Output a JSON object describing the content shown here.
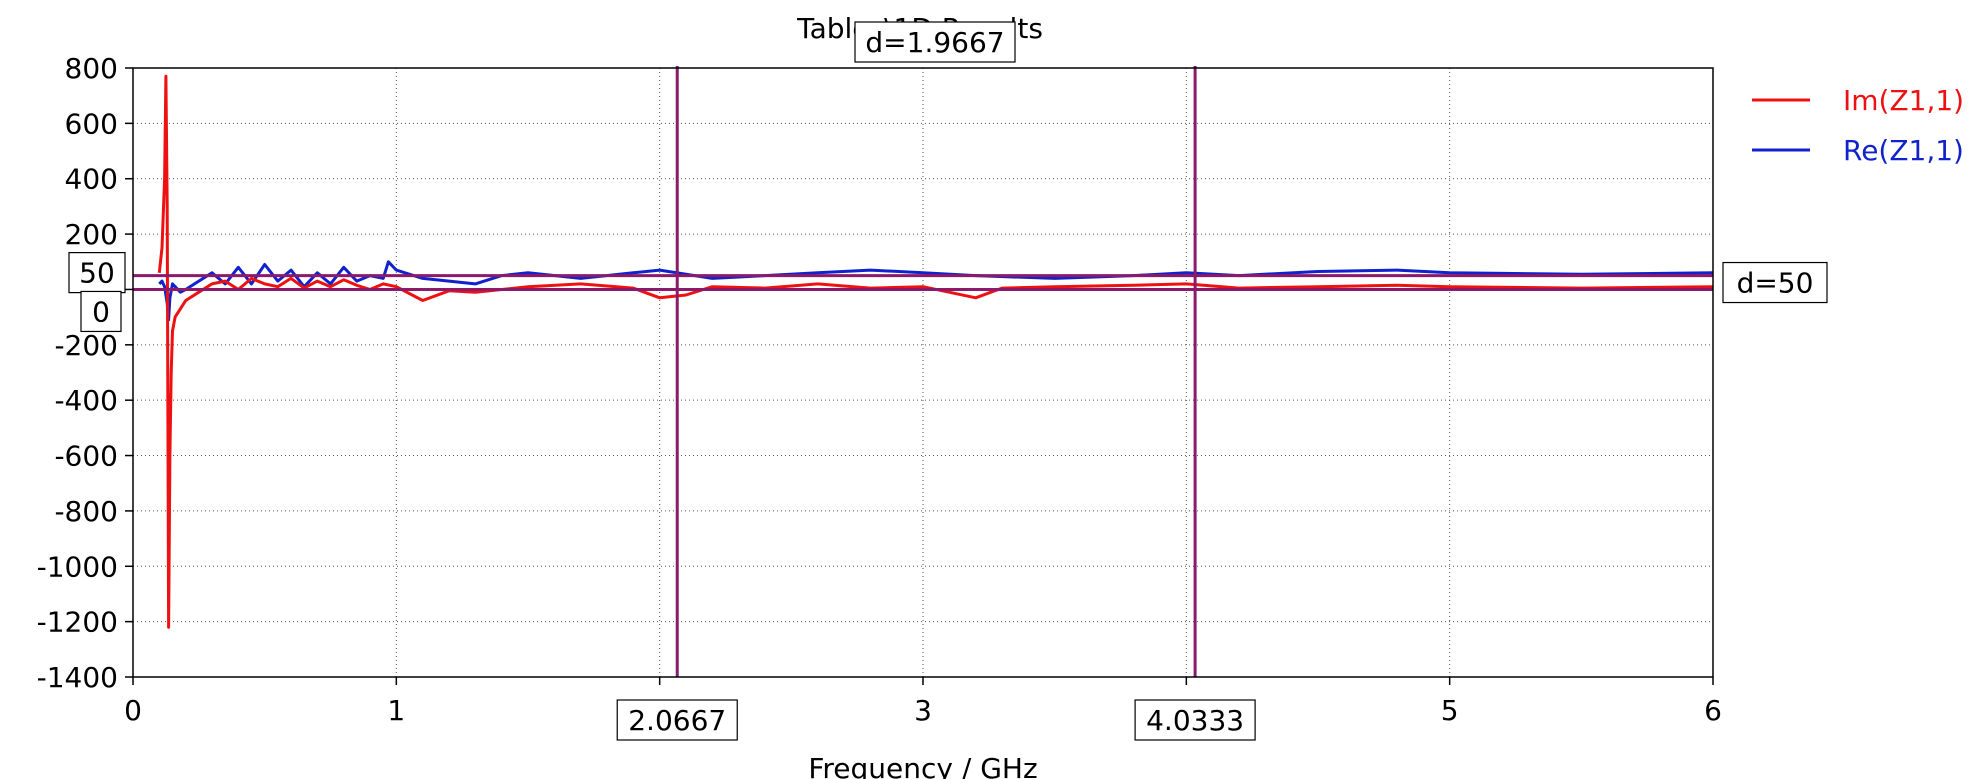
{
  "chart_data": {
    "type": "line",
    "title": "Tables\\1D Results",
    "xlabel": "Frequency / GHz",
    "ylabel": "",
    "xlim": [
      0,
      6
    ],
    "ylim": [
      -1400,
      800
    ],
    "xticks": [
      "0",
      "1",
      "3",
      "5",
      "6"
    ],
    "yticks": [
      "800",
      "600",
      "400",
      "200",
      "-200",
      "-400",
      "-600",
      "-800",
      "-1000",
      "-1200",
      "-1400"
    ],
    "grid": true,
    "legend_position": "right",
    "series": [
      {
        "name": "Im(Z1,1)",
        "color": "#ee1111",
        "x": [
          0.1,
          0.11,
          0.12,
          0.125,
          0.13,
          0.135,
          0.14,
          0.145,
          0.15,
          0.16,
          0.18,
          0.2,
          0.25,
          0.3,
          0.35,
          0.4,
          0.45,
          0.5,
          0.55,
          0.6,
          0.65,
          0.7,
          0.75,
          0.8,
          0.85,
          0.9,
          0.95,
          1.0,
          1.1,
          1.2,
          1.3,
          1.4,
          1.5,
          1.7,
          1.9,
          2.0,
          2.1,
          2.2,
          2.4,
          2.6,
          2.8,
          3.0,
          3.2,
          3.3,
          3.5,
          3.8,
          4.0,
          4.2,
          4.5,
          4.8,
          5.0,
          5.5,
          6.0
        ],
        "y": [
          60,
          150,
          400,
          770,
          300,
          -1220,
          -600,
          -300,
          -150,
          -100,
          -70,
          -40,
          -10,
          20,
          30,
          0,
          40,
          20,
          10,
          40,
          5,
          30,
          10,
          35,
          15,
          0,
          20,
          10,
          -40,
          -5,
          -10,
          0,
          10,
          20,
          5,
          -30,
          -20,
          10,
          5,
          20,
          5,
          10,
          -30,
          5,
          10,
          15,
          20,
          5,
          10,
          15,
          10,
          5,
          10
        ]
      },
      {
        "name": "Re(Z1,1)",
        "color": "#1122cc",
        "x": [
          0.1,
          0.11,
          0.12,
          0.13,
          0.135,
          0.14,
          0.15,
          0.18,
          0.2,
          0.25,
          0.3,
          0.35,
          0.4,
          0.45,
          0.5,
          0.55,
          0.6,
          0.65,
          0.7,
          0.75,
          0.8,
          0.85,
          0.9,
          0.95,
          0.97,
          1.0,
          1.1,
          1.2,
          1.3,
          1.4,
          1.5,
          1.7,
          1.9,
          2.0,
          2.2,
          2.4,
          2.6,
          2.8,
          3.0,
          3.2,
          3.5,
          3.8,
          4.0,
          4.2,
          4.5,
          4.8,
          5.0,
          5.5,
          6.0
        ],
        "y": [
          20,
          30,
          10,
          -50,
          -110,
          -30,
          20,
          -10,
          0,
          30,
          60,
          20,
          80,
          20,
          90,
          30,
          70,
          10,
          60,
          20,
          80,
          30,
          50,
          40,
          100,
          70,
          40,
          30,
          20,
          50,
          60,
          40,
          60,
          70,
          40,
          50,
          60,
          70,
          60,
          50,
          40,
          50,
          60,
          50,
          65,
          70,
          60,
          55,
          60
        ]
      }
    ],
    "markers": {
      "vertical": [
        {
          "x": 2.0667,
          "label": "2.0667"
        },
        {
          "x": 4.0333,
          "label": "4.0333"
        }
      ],
      "horizontal": [
        {
          "y": 50,
          "label": "50"
        },
        {
          "y": 0,
          "label": "0"
        }
      ],
      "vertical_delta_label": "d=1.9667",
      "horizontal_delta_label": "d=50",
      "marker_color": "#8b1a6b"
    }
  }
}
